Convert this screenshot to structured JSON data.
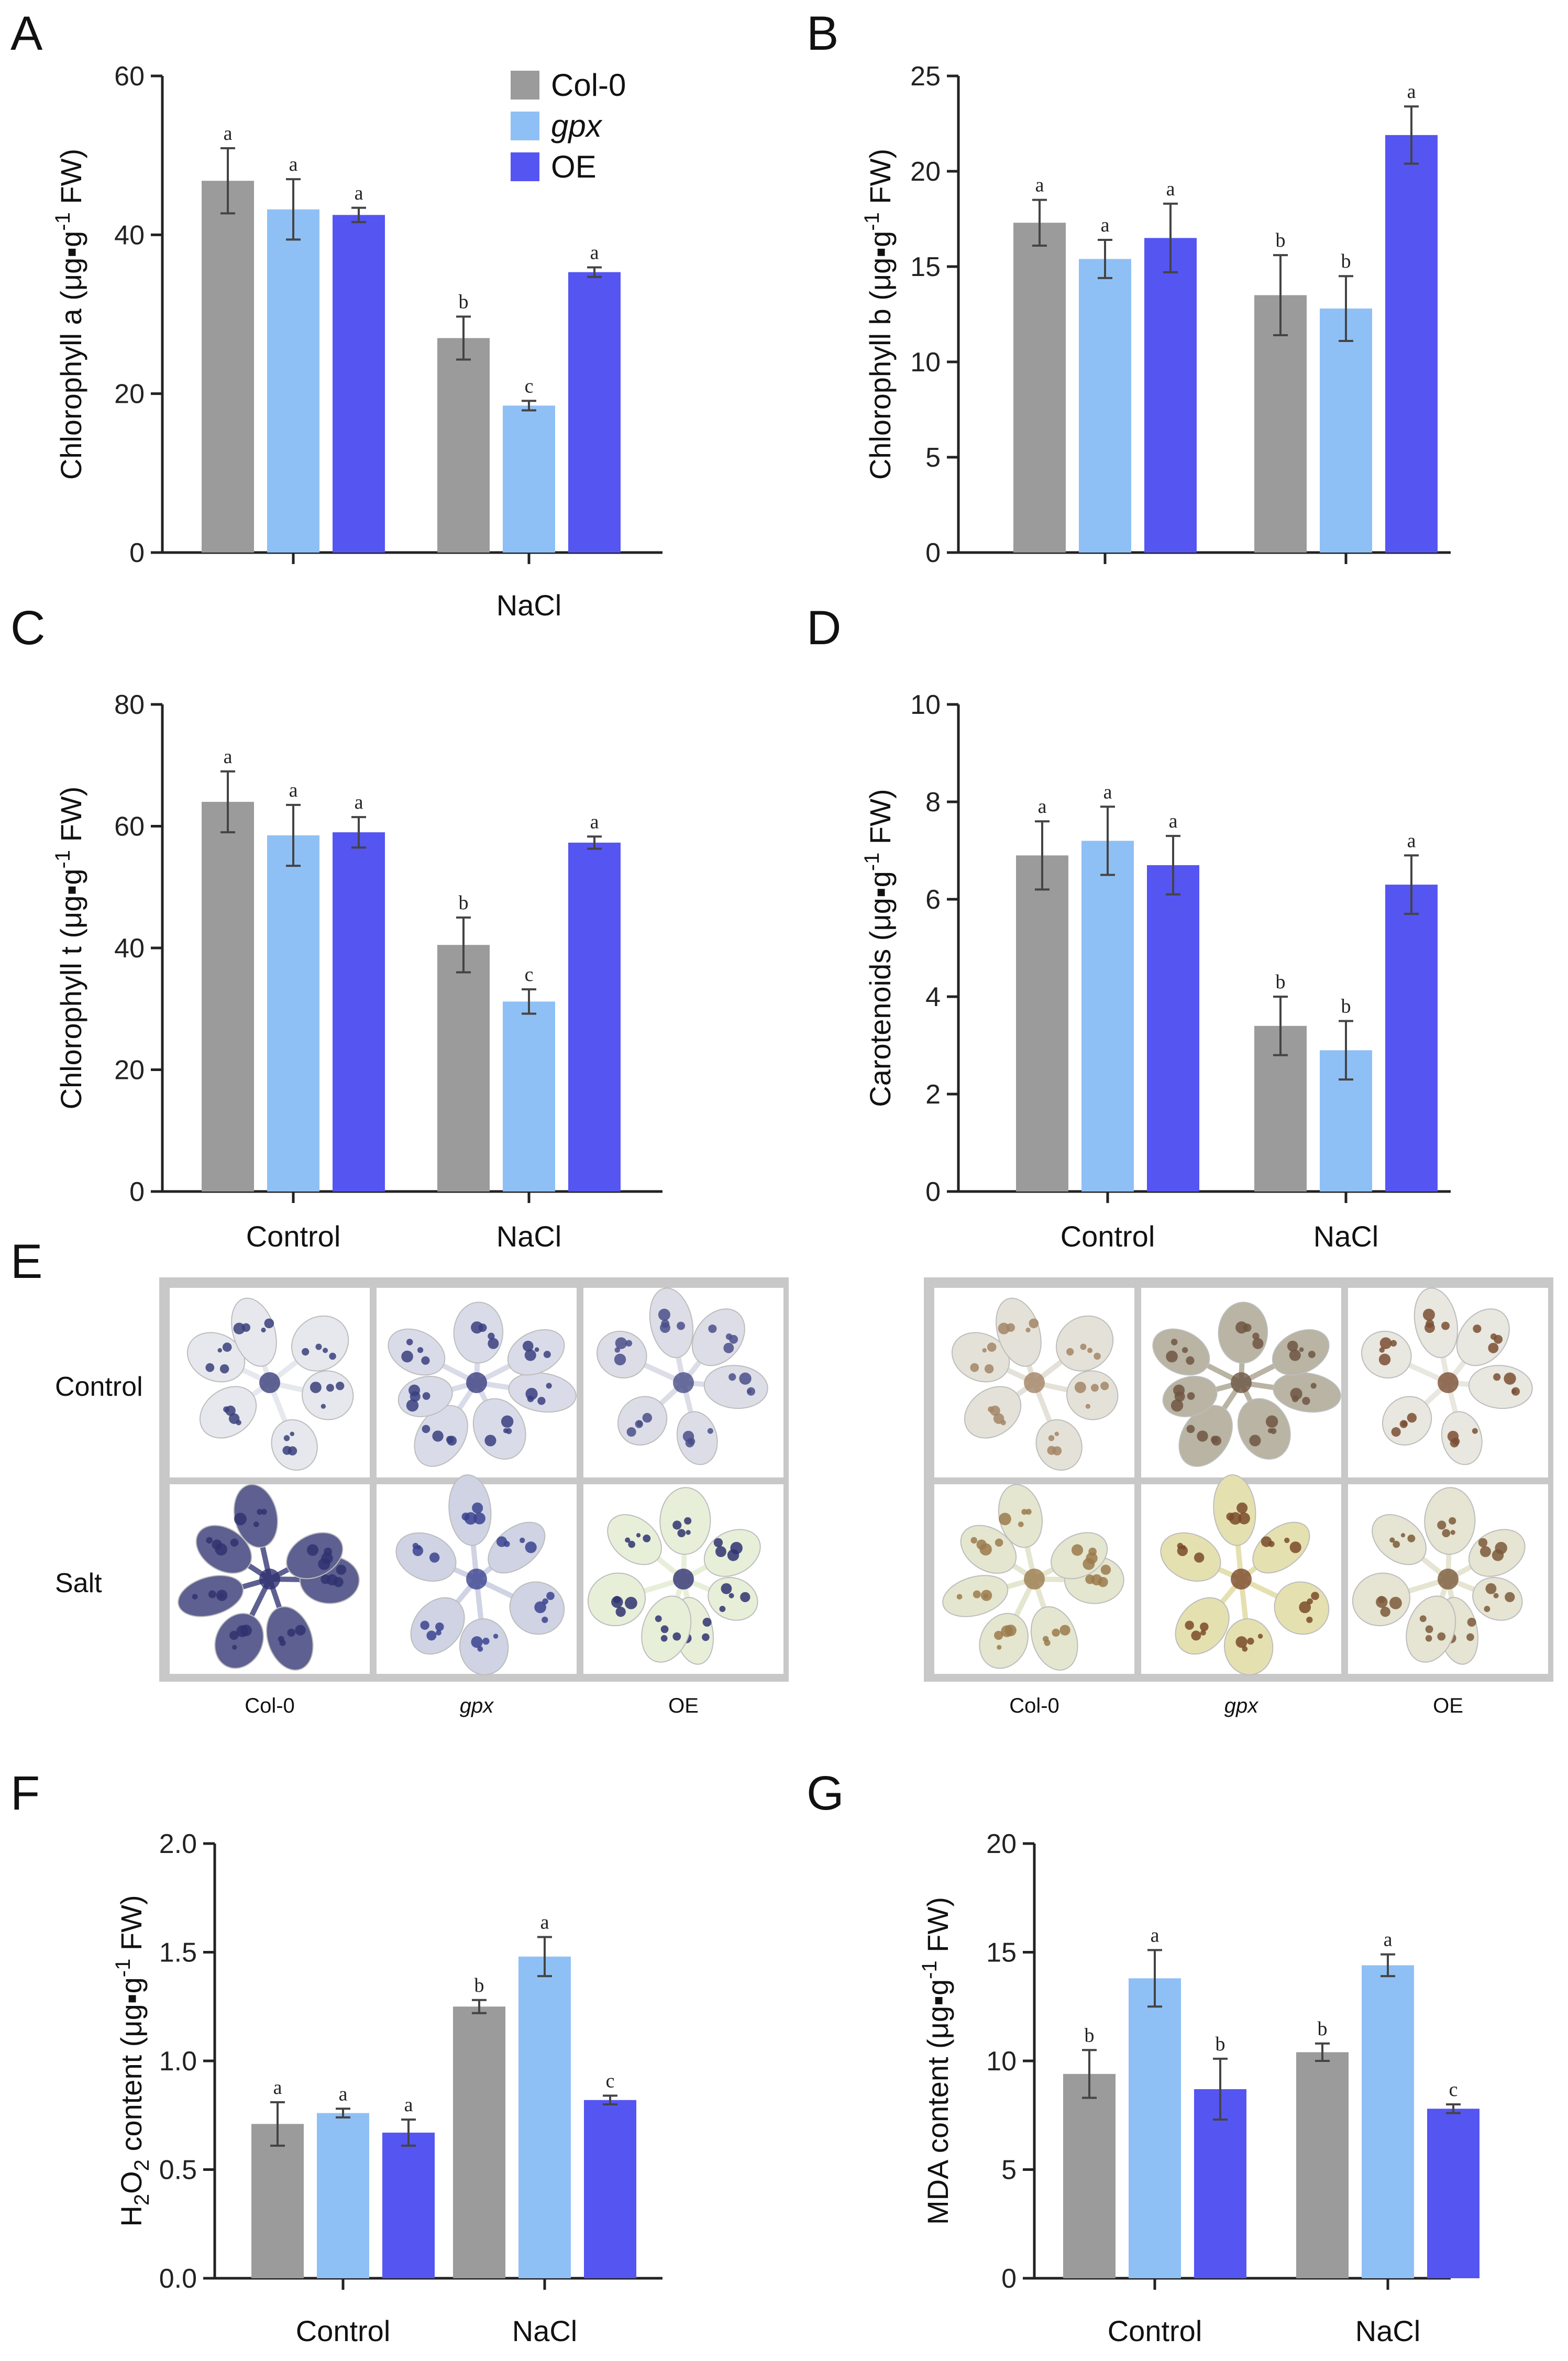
{
  "colors": {
    "col0": "#9b9b9b",
    "gpx": "#8fc0f5",
    "oe": "#5555f2",
    "axis": "#222222",
    "errorbar": "#444444"
  },
  "legend": {
    "items": [
      {
        "label": "Col-0",
        "color": "#9b9b9b",
        "italic": false
      },
      {
        "label": "gpx",
        "color": "#8fc0f5",
        "italic": true
      },
      {
        "label": "OE",
        "color": "#5555f2",
        "italic": false
      }
    ]
  },
  "panel_e": {
    "label": "E",
    "row_labels": [
      "Control",
      "Salt"
    ],
    "captions": [
      "Col-0",
      "gpx",
      "OE"
    ],
    "left_stain": "NBT-blue",
    "right_stain": "DAB-brown"
  },
  "chart_data": [
    {
      "panel": "A",
      "type": "bar",
      "categories": [
        "",
        "NaCl"
      ],
      "series": [
        {
          "name": "Col-0",
          "values": [
            46.8,
            27.0
          ],
          "errors": [
            4.1,
            2.7
          ],
          "letters": [
            "a",
            "b"
          ]
        },
        {
          "name": "gpx",
          "values": [
            43.2,
            18.5
          ],
          "errors": [
            3.8,
            0.6
          ],
          "letters": [
            "a",
            "c"
          ]
        },
        {
          "name": "OE",
          "values": [
            42.5,
            35.3
          ],
          "errors": [
            0.9,
            0.6
          ],
          "letters": [
            "a",
            "a"
          ]
        }
      ],
      "ylabel": "Chlorophyll a (μg▪g-1 FW)",
      "ylim": [
        0,
        60
      ],
      "yticks": [
        "0",
        "20",
        "40",
        "60"
      ],
      "has_legend": true
    },
    {
      "panel": "B",
      "type": "bar",
      "categories": [
        "",
        ""
      ],
      "series": [
        {
          "name": "Col-0",
          "values": [
            17.3,
            13.5
          ],
          "errors": [
            1.2,
            2.1
          ],
          "letters": [
            "a",
            "b"
          ]
        },
        {
          "name": "gpx",
          "values": [
            15.4,
            12.8
          ],
          "errors": [
            1.0,
            1.7
          ],
          "letters": [
            "a",
            "b"
          ]
        },
        {
          "name": "OE",
          "values": [
            16.5,
            21.9
          ],
          "errors": [
            1.8,
            1.5
          ],
          "letters": [
            "a",
            "a"
          ]
        }
      ],
      "ylabel": "Chlorophyll b (μg▪g-1 FW)",
      "ylim": [
        0,
        25
      ],
      "yticks": [
        "0",
        "5",
        "10",
        "15",
        "20",
        "25"
      ],
      "has_legend": false
    },
    {
      "panel": "C",
      "type": "bar",
      "categories": [
        "Control",
        "NaCl"
      ],
      "series": [
        {
          "name": "Col-0",
          "values": [
            64.0,
            40.5
          ],
          "errors": [
            5.0,
            4.5
          ],
          "letters": [
            "a",
            "b"
          ]
        },
        {
          "name": "gpx",
          "values": [
            58.5,
            31.2
          ],
          "errors": [
            5.0,
            2.0
          ],
          "letters": [
            "a",
            "c"
          ]
        },
        {
          "name": "OE",
          "values": [
            59.0,
            57.3
          ],
          "errors": [
            2.5,
            1.0
          ],
          "letters": [
            "a",
            "a"
          ]
        }
      ],
      "ylabel": "Chlorophyll t (μg▪g-1 FW)",
      "ylim": [
        0,
        80
      ],
      "yticks": [
        "0",
        "20",
        "40",
        "60",
        "80"
      ],
      "has_legend": false
    },
    {
      "panel": "D",
      "type": "bar",
      "categories": [
        "Control",
        "NaCl"
      ],
      "series": [
        {
          "name": "Col-0",
          "values": [
            6.9,
            3.4
          ],
          "errors": [
            0.7,
            0.6
          ],
          "letters": [
            "a",
            "b"
          ]
        },
        {
          "name": "gpx",
          "values": [
            7.2,
            2.9
          ],
          "errors": [
            0.7,
            0.6
          ],
          "letters": [
            "a",
            "b"
          ]
        },
        {
          "name": "OE",
          "values": [
            6.7,
            6.3
          ],
          "errors": [
            0.6,
            0.6
          ],
          "letters": [
            "a",
            "a"
          ]
        }
      ],
      "ylabel": "Carotenoids (μg▪g-1 FW)",
      "ylim": [
        0,
        10
      ],
      "yticks": [
        "0",
        "2",
        "4",
        "6",
        "8",
        "10"
      ],
      "has_legend": false
    },
    {
      "panel": "F",
      "type": "bar",
      "categories": [
        "Control",
        "NaCl"
      ],
      "series": [
        {
          "name": "Col-0",
          "values": [
            0.71,
            1.25
          ],
          "errors": [
            0.1,
            0.03
          ],
          "letters": [
            "a",
            "b"
          ]
        },
        {
          "name": "gpx",
          "values": [
            0.76,
            1.48
          ],
          "errors": [
            0.02,
            0.09
          ],
          "letters": [
            "a",
            "a"
          ]
        },
        {
          "name": "OE",
          "values": [
            0.67,
            0.82
          ],
          "errors": [
            0.06,
            0.02
          ],
          "letters": [
            "a",
            "c"
          ]
        }
      ],
      "ylabel": "H2O2 content (μg▪g-1 FW)",
      "ylim": [
        0,
        2.0
      ],
      "yticks": [
        "0.0",
        "0.5",
        "1.0",
        "1.5",
        "2.0"
      ],
      "has_legend": false
    },
    {
      "panel": "G",
      "type": "bar",
      "categories": [
        "Control",
        "NaCl"
      ],
      "series": [
        {
          "name": "Col-0",
          "values": [
            9.4,
            10.4
          ],
          "errors": [
            1.1,
            0.4
          ],
          "letters": [
            "b",
            "b"
          ]
        },
        {
          "name": "gpx",
          "values": [
            13.8,
            14.4
          ],
          "errors": [
            1.3,
            0.5
          ],
          "letters": [
            "a",
            "a"
          ]
        },
        {
          "name": "OE",
          "values": [
            8.7,
            7.8
          ],
          "errors": [
            1.4,
            0.2
          ],
          "letters": [
            "b",
            "c"
          ]
        }
      ],
      "ylabel": "MDA content (μg▪g-1 FW)",
      "ylim": [
        0,
        20
      ],
      "yticks": [
        "0",
        "5",
        "10",
        "15",
        "20"
      ],
      "has_legend": false
    }
  ]
}
